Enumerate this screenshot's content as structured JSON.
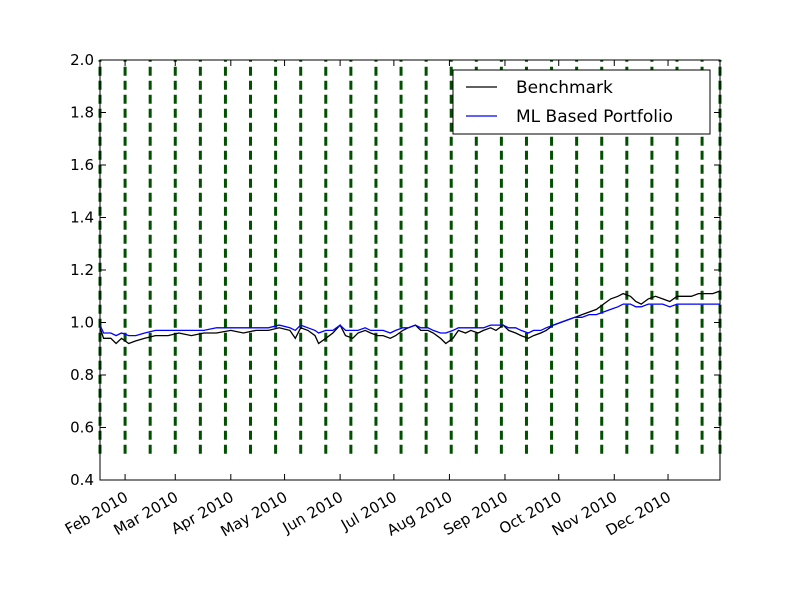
{
  "chart_data": {
    "type": "line",
    "title": "",
    "xlabel": "",
    "ylabel": "",
    "ylim": [
      0.4,
      2.0
    ],
    "xlim": [
      "2010-01-18",
      "2010-12-30"
    ],
    "grid": false,
    "legend_position": "top-right",
    "yticks": [
      0.4,
      0.6,
      0.8,
      1.0,
      1.2,
      1.4,
      1.6,
      1.8,
      2.0
    ],
    "ytick_labels": [
      "0.4",
      "0.6",
      "0.8",
      "1.0",
      "1.2",
      "1.4",
      "1.6",
      "1.8",
      "2.0"
    ],
    "xticks": [
      "2010-02-01",
      "2010-03-01",
      "2010-04-01",
      "2010-05-01",
      "2010-06-01",
      "2010-07-01",
      "2010-08-01",
      "2010-09-01",
      "2010-10-01",
      "2010-11-01",
      "2010-12-01"
    ],
    "xtick_labels": [
      "Feb 2010",
      "Mar 2010",
      "Apr 2010",
      "May 2010",
      "Jun 2010",
      "Jul 2010",
      "Aug 2010",
      "Sep 2010",
      "Oct 2010",
      "Nov 2010",
      "Dec 2010"
    ],
    "vlines": {
      "color": "#005000",
      "style": "dashed",
      "y_range": [
        0.5,
        2.0
      ],
      "dates": [
        "2010-01-18",
        "2010-02-01",
        "2010-02-15",
        "2010-03-01",
        "2010-03-15",
        "2010-03-29",
        "2010-04-12",
        "2010-04-26",
        "2010-05-10",
        "2010-05-24",
        "2010-06-07",
        "2010-06-21",
        "2010-07-05",
        "2010-07-19",
        "2010-08-02",
        "2010-08-16",
        "2010-08-30",
        "2010-09-13",
        "2010-09-27",
        "2010-10-11",
        "2010-10-25",
        "2010-11-08",
        "2010-11-22",
        "2010-12-06",
        "2010-12-20",
        "2010-12-30"
      ]
    },
    "series": [
      {
        "name": "Benchmark",
        "color": "#000000",
        "points": [
          [
            "2010-01-18",
            0.98
          ],
          [
            "2010-01-20",
            0.94
          ],
          [
            "2010-01-24",
            0.94
          ],
          [
            "2010-01-27",
            0.92
          ],
          [
            "2010-01-30",
            0.94
          ],
          [
            "2010-02-03",
            0.92
          ],
          [
            "2010-02-07",
            0.93
          ],
          [
            "2010-02-12",
            0.94
          ],
          [
            "2010-02-18",
            0.95
          ],
          [
            "2010-02-25",
            0.95
          ],
          [
            "2010-03-03",
            0.96
          ],
          [
            "2010-03-10",
            0.95
          ],
          [
            "2010-03-17",
            0.96
          ],
          [
            "2010-03-24",
            0.96
          ],
          [
            "2010-04-01",
            0.97
          ],
          [
            "2010-04-08",
            0.96
          ],
          [
            "2010-04-15",
            0.97
          ],
          [
            "2010-04-22",
            0.97
          ],
          [
            "2010-04-28",
            0.98
          ],
          [
            "2010-05-04",
            0.97
          ],
          [
            "2010-05-07",
            0.94
          ],
          [
            "2010-05-10",
            0.98
          ],
          [
            "2010-05-14",
            0.97
          ],
          [
            "2010-05-18",
            0.95
          ],
          [
            "2010-05-20",
            0.92
          ],
          [
            "2010-05-24",
            0.94
          ],
          [
            "2010-05-28",
            0.96
          ],
          [
            "2010-06-01",
            0.99
          ],
          [
            "2010-06-04",
            0.95
          ],
          [
            "2010-06-08",
            0.94
          ],
          [
            "2010-06-11",
            0.96
          ],
          [
            "2010-06-15",
            0.97
          ],
          [
            "2010-06-18",
            0.96
          ],
          [
            "2010-06-22",
            0.95
          ],
          [
            "2010-06-25",
            0.95
          ],
          [
            "2010-06-29",
            0.94
          ],
          [
            "2010-07-02",
            0.95
          ],
          [
            "2010-07-06",
            0.97
          ],
          [
            "2010-07-09",
            0.98
          ],
          [
            "2010-07-13",
            0.99
          ],
          [
            "2010-07-16",
            0.97
          ],
          [
            "2010-07-20",
            0.97
          ],
          [
            "2010-07-23",
            0.96
          ],
          [
            "2010-07-27",
            0.94
          ],
          [
            "2010-07-30",
            0.92
          ],
          [
            "2010-08-03",
            0.94
          ],
          [
            "2010-08-06",
            0.97
          ],
          [
            "2010-08-10",
            0.96
          ],
          [
            "2010-08-13",
            0.97
          ],
          [
            "2010-08-17",
            0.96
          ],
          [
            "2010-08-20",
            0.97
          ],
          [
            "2010-08-24",
            0.98
          ],
          [
            "2010-08-27",
            0.97
          ],
          [
            "2010-08-31",
            0.99
          ],
          [
            "2010-09-03",
            0.97
          ],
          [
            "2010-09-07",
            0.96
          ],
          [
            "2010-09-10",
            0.95
          ],
          [
            "2010-09-14",
            0.94
          ],
          [
            "2010-09-17",
            0.95
          ],
          [
            "2010-09-21",
            0.96
          ],
          [
            "2010-09-24",
            0.97
          ],
          [
            "2010-09-28",
            0.99
          ],
          [
            "2010-10-02",
            1.0
          ],
          [
            "2010-10-06",
            1.01
          ],
          [
            "2010-10-10",
            1.02
          ],
          [
            "2010-10-14",
            1.03
          ],
          [
            "2010-10-18",
            1.04
          ],
          [
            "2010-10-22",
            1.05
          ],
          [
            "2010-10-26",
            1.07
          ],
          [
            "2010-10-30",
            1.09
          ],
          [
            "2010-11-03",
            1.1
          ],
          [
            "2010-11-06",
            1.11
          ],
          [
            "2010-11-10",
            1.1
          ],
          [
            "2010-11-13",
            1.08
          ],
          [
            "2010-11-16",
            1.07
          ],
          [
            "2010-11-20",
            1.09
          ],
          [
            "2010-11-24",
            1.1
          ],
          [
            "2010-11-28",
            1.09
          ],
          [
            "2010-12-02",
            1.08
          ],
          [
            "2010-12-06",
            1.1
          ],
          [
            "2010-12-10",
            1.1
          ],
          [
            "2010-12-14",
            1.1
          ],
          [
            "2010-12-18",
            1.11
          ],
          [
            "2010-12-22",
            1.11
          ],
          [
            "2010-12-26",
            1.11
          ],
          [
            "2010-12-30",
            1.12
          ]
        ]
      },
      {
        "name": "ML Based Portfolio",
        "color": "#0000ff",
        "points": [
          [
            "2010-01-18",
            0.99
          ],
          [
            "2010-01-20",
            0.96
          ],
          [
            "2010-01-24",
            0.96
          ],
          [
            "2010-01-27",
            0.95
          ],
          [
            "2010-01-30",
            0.96
          ],
          [
            "2010-02-03",
            0.95
          ],
          [
            "2010-02-07",
            0.95
          ],
          [
            "2010-02-12",
            0.96
          ],
          [
            "2010-02-18",
            0.97
          ],
          [
            "2010-02-25",
            0.97
          ],
          [
            "2010-03-03",
            0.97
          ],
          [
            "2010-03-10",
            0.97
          ],
          [
            "2010-03-17",
            0.97
          ],
          [
            "2010-03-24",
            0.98
          ],
          [
            "2010-04-01",
            0.98
          ],
          [
            "2010-04-08",
            0.98
          ],
          [
            "2010-04-15",
            0.98
          ],
          [
            "2010-04-22",
            0.98
          ],
          [
            "2010-04-28",
            0.99
          ],
          [
            "2010-05-04",
            0.98
          ],
          [
            "2010-05-07",
            0.97
          ],
          [
            "2010-05-10",
            0.99
          ],
          [
            "2010-05-14",
            0.98
          ],
          [
            "2010-05-18",
            0.97
          ],
          [
            "2010-05-20",
            0.96
          ],
          [
            "2010-05-24",
            0.97
          ],
          [
            "2010-05-28",
            0.97
          ],
          [
            "2010-06-01",
            0.99
          ],
          [
            "2010-06-04",
            0.97
          ],
          [
            "2010-06-08",
            0.97
          ],
          [
            "2010-06-11",
            0.97
          ],
          [
            "2010-06-15",
            0.98
          ],
          [
            "2010-06-18",
            0.97
          ],
          [
            "2010-06-22",
            0.97
          ],
          [
            "2010-06-25",
            0.97
          ],
          [
            "2010-06-29",
            0.96
          ],
          [
            "2010-07-02",
            0.97
          ],
          [
            "2010-07-06",
            0.98
          ],
          [
            "2010-07-09",
            0.98
          ],
          [
            "2010-07-13",
            0.99
          ],
          [
            "2010-07-16",
            0.98
          ],
          [
            "2010-07-20",
            0.98
          ],
          [
            "2010-07-23",
            0.97
          ],
          [
            "2010-07-27",
            0.96
          ],
          [
            "2010-07-30",
            0.96
          ],
          [
            "2010-08-03",
            0.97
          ],
          [
            "2010-08-06",
            0.98
          ],
          [
            "2010-08-10",
            0.98
          ],
          [
            "2010-08-13",
            0.98
          ],
          [
            "2010-08-17",
            0.98
          ],
          [
            "2010-08-20",
            0.98
          ],
          [
            "2010-08-24",
            0.99
          ],
          [
            "2010-08-27",
            0.99
          ],
          [
            "2010-08-31",
            0.99
          ],
          [
            "2010-09-03",
            0.98
          ],
          [
            "2010-09-07",
            0.98
          ],
          [
            "2010-09-10",
            0.97
          ],
          [
            "2010-09-14",
            0.96
          ],
          [
            "2010-09-17",
            0.97
          ],
          [
            "2010-09-21",
            0.97
          ],
          [
            "2010-09-24",
            0.98
          ],
          [
            "2010-09-28",
            0.99
          ],
          [
            "2010-10-02",
            1.0
          ],
          [
            "2010-10-06",
            1.01
          ],
          [
            "2010-10-10",
            1.02
          ],
          [
            "2010-10-14",
            1.02
          ],
          [
            "2010-10-18",
            1.03
          ],
          [
            "2010-10-22",
            1.03
          ],
          [
            "2010-10-26",
            1.04
          ],
          [
            "2010-10-30",
            1.05
          ],
          [
            "2010-11-03",
            1.06
          ],
          [
            "2010-11-06",
            1.07
          ],
          [
            "2010-11-10",
            1.07
          ],
          [
            "2010-11-13",
            1.06
          ],
          [
            "2010-11-16",
            1.06
          ],
          [
            "2010-11-20",
            1.07
          ],
          [
            "2010-11-24",
            1.07
          ],
          [
            "2010-11-28",
            1.07
          ],
          [
            "2010-12-02",
            1.06
          ],
          [
            "2010-12-06",
            1.07
          ],
          [
            "2010-12-10",
            1.07
          ],
          [
            "2010-12-14",
            1.07
          ],
          [
            "2010-12-18",
            1.07
          ],
          [
            "2010-12-22",
            1.07
          ],
          [
            "2010-12-26",
            1.07
          ],
          [
            "2010-12-30",
            1.07
          ]
        ]
      }
    ]
  }
}
